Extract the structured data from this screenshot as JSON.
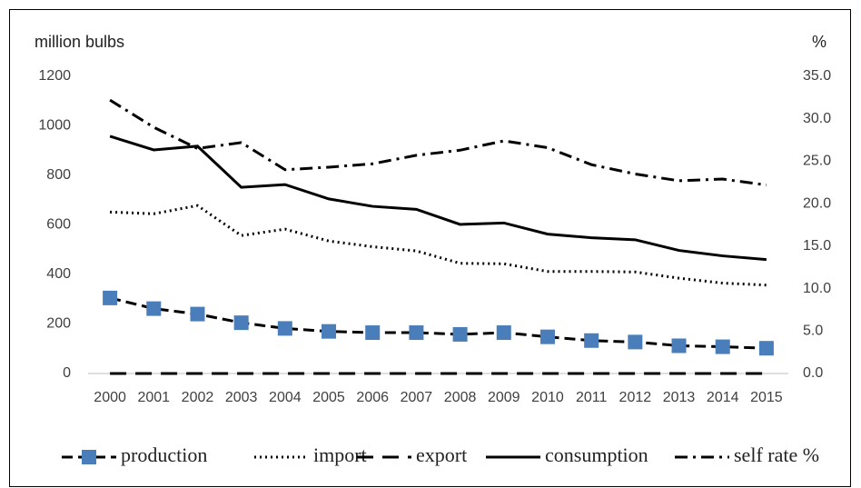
{
  "chart_data": {
    "type": "line",
    "y_label": "million bulbs",
    "y2_label": "%",
    "categories": [
      "2000",
      "2001",
      "2002",
      "2003",
      "2004",
      "2005",
      "2006",
      "2007",
      "2008",
      "2009",
      "2010",
      "2011",
      "2012",
      "2013",
      "2014",
      "2015"
    ],
    "series": [
      {
        "name": "production",
        "color": "#000000",
        "style": "dashed",
        "marker": "square",
        "marker_color": "#4a7ebb",
        "values": [
          305,
          262,
          240,
          205,
          182,
          170,
          165,
          165,
          158,
          165,
          148,
          133,
          127,
          112,
          108,
          102
        ]
      },
      {
        "name": "import",
        "color": "#000000",
        "style": "dotted",
        "values": [
          652,
          645,
          678,
          557,
          583,
          535,
          512,
          495,
          445,
          443,
          412,
          412,
          410,
          385,
          365,
          357
        ]
      },
      {
        "name": "export",
        "color": "#000000",
        "style": "long-dash",
        "values": [
          0,
          0,
          0,
          0,
          0,
          0,
          0,
          0,
          0,
          0,
          0,
          0,
          0,
          0,
          0,
          0
        ]
      },
      {
        "name": "consumption",
        "color": "#000000",
        "style": "solid",
        "values": [
          958,
          903,
          918,
          752,
          763,
          705,
          675,
          663,
          602,
          608,
          563,
          548,
          540,
          497,
          475,
          460
        ]
      },
      {
        "name": "self rate %",
        "color": "#000000",
        "style": "dash-dot",
        "axis": "y2",
        "values": [
          32.2,
          29.0,
          26.5,
          27.2,
          24.0,
          24.3,
          24.7,
          25.7,
          26.3,
          27.4,
          26.6,
          24.6,
          23.5,
          22.7,
          22.9,
          22.2
        ]
      }
    ],
    "ylim": [
      0,
      1200
    ],
    "yticks": [
      0,
      200,
      400,
      600,
      800,
      1000,
      1200
    ],
    "y2lim": [
      0,
      35
    ],
    "y2ticks": [
      {
        "value": 0,
        "label": "0.0"
      },
      {
        "value": 5,
        "label": "5.0"
      },
      {
        "value": 10,
        "label": "10.0"
      },
      {
        "value": 15,
        "label": "15.0"
      },
      {
        "value": 20,
        "label": "20.0"
      },
      {
        "value": 25,
        "label": "25.0"
      },
      {
        "value": 30,
        "label": "30.0"
      },
      {
        "value": 35,
        "label": "35.0"
      }
    ],
    "grid": false,
    "legend": "bottom"
  }
}
